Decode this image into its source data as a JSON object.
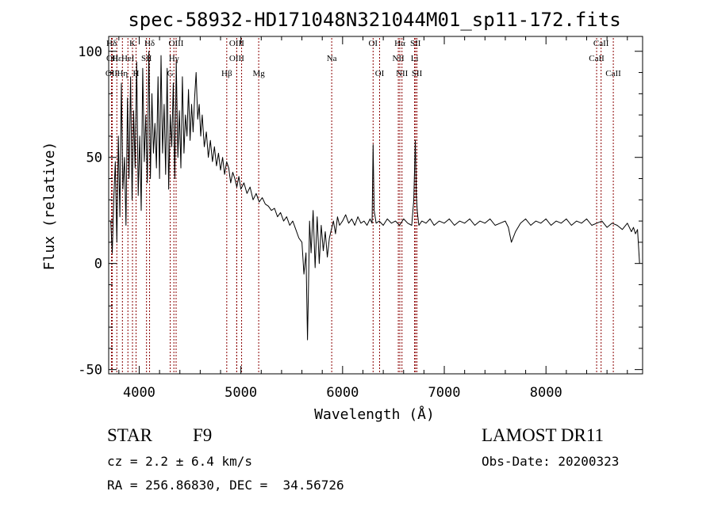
{
  "chart_data": {
    "type": "line",
    "title": "spec-58932-HD171048N321044M01_sp11-172.fits",
    "xlabel": "Wavelength (Å)",
    "ylabel": "Flux (relative)",
    "xlim": [
      3700,
      8950
    ],
    "ylim": [
      -52,
      107
    ],
    "xticks": [
      4000,
      5000,
      6000,
      7000,
      8000
    ],
    "yticks": [
      -50,
      0,
      50,
      100
    ],
    "grid": false,
    "line_color": "#000000",
    "marker_color": "#8b0000",
    "series": [
      {
        "x": [
          3720,
          3735,
          3750,
          3765,
          3780,
          3795,
          3810,
          3825,
          3840,
          3855,
          3870,
          3885,
          3900,
          3915,
          3930,
          3945,
          3960,
          3975,
          3990,
          4005,
          4020,
          4035,
          4050,
          4065,
          4080,
          4095,
          4110,
          4125,
          4140,
          4155,
          4170,
          4185,
          4200,
          4215,
          4230,
          4245,
          4260,
          4275,
          4290,
          4305,
          4320,
          4335,
          4350,
          4365,
          4380,
          4395,
          4410,
          4425,
          4440,
          4455,
          4470,
          4485,
          4500,
          4515,
          4530,
          4545,
          4560,
          4575,
          4590,
          4605,
          4620,
          4640,
          4660,
          4680,
          4700,
          4720,
          4740,
          4760,
          4780,
          4800,
          4820,
          4840,
          4860,
          4880,
          4900,
          4920,
          4940,
          4960,
          4980,
          5000,
          5030,
          5060,
          5090,
          5120,
          5150,
          5180,
          5210,
          5240,
          5270,
          5300,
          5330,
          5360,
          5390,
          5420,
          5450,
          5480,
          5510,
          5540,
          5570,
          5600,
          5620,
          5640,
          5655,
          5665,
          5675,
          5690,
          5710,
          5730,
          5750,
          5770,
          5790,
          5810,
          5830,
          5850,
          5870,
          5890,
          5910,
          5930,
          5950,
          5970,
          6000,
          6030,
          6060,
          6090,
          6120,
          6150,
          6180,
          6210,
          6240,
          6270,
          6290,
          6300,
          6310,
          6330,
          6360,
          6400,
          6440,
          6480,
          6520,
          6560,
          6600,
          6640,
          6680,
          6700,
          6715,
          6725,
          6735,
          6750,
          6780,
          6820,
          6860,
          6900,
          6950,
          7000,
          7050,
          7100,
          7150,
          7200,
          7250,
          7300,
          7350,
          7400,
          7450,
          7500,
          7550,
          7600,
          7630,
          7660,
          7700,
          7750,
          7800,
          7850,
          7900,
          7950,
          8000,
          8050,
          8100,
          8150,
          8200,
          8250,
          8300,
          8350,
          8400,
          8450,
          8500,
          8550,
          8600,
          8650,
          8700,
          8750,
          8800,
          8840,
          8860,
          8880,
          8900,
          8920
        ],
        "y": [
          20,
          5,
          30,
          48,
          10,
          60,
          22,
          85,
          35,
          50,
          18,
          78,
          40,
          88,
          30,
          72,
          45,
          95,
          32,
          60,
          25,
          92,
          48,
          70,
          38,
          100,
          40,
          80,
          52,
          66,
          45,
          88,
          40,
          98,
          52,
          75,
          42,
          92,
          35,
          70,
          55,
          85,
          40,
          95,
          50,
          72,
          45,
          88,
          52,
          70,
          60,
          82,
          58,
          75,
          62,
          78,
          90,
          68,
          75,
          60,
          70,
          55,
          62,
          50,
          58,
          48,
          55,
          46,
          52,
          44,
          50,
          42,
          48,
          45,
          38,
          43,
          40,
          36,
          41,
          35,
          38,
          33,
          36,
          30,
          33,
          29,
          31,
          28,
          27,
          25,
          26,
          22,
          24,
          20,
          22,
          18,
          20,
          16,
          12,
          10,
          -5,
          5,
          -36,
          -10,
          20,
          5,
          25,
          -2,
          22,
          0,
          18,
          6,
          15,
          3,
          12,
          16,
          20,
          14,
          22,
          18,
          20,
          23,
          19,
          21,
          18,
          22,
          19,
          20,
          18,
          21,
          19,
          56,
          25,
          19,
          20,
          18,
          21,
          19,
          20,
          18,
          21,
          19,
          18,
          30,
          58,
          32,
          24,
          18,
          20,
          19,
          21,
          18,
          20,
          19,
          21,
          18,
          20,
          19,
          21,
          18,
          20,
          19,
          21,
          18,
          19,
          20,
          17,
          10,
          15,
          19,
          21,
          18,
          20,
          19,
          21,
          18,
          20,
          19,
          21,
          18,
          20,
          19,
          21,
          18,
          19,
          20,
          17,
          19,
          18,
          16,
          19,
          15,
          17,
          14,
          16,
          0
        ]
      }
    ],
    "lines": [
      {
        "label": "Hδ",
        "x": 3728,
        "row": 0
      },
      {
        "label": "OII",
        "x": 3736,
        "row": 1
      },
      {
        "label": "OII",
        "x": 3727,
        "row": 2
      },
      {
        "label": "Hε",
        "x": 3780,
        "row": 1
      },
      {
        "label": "Hη",
        "x": 3835,
        "row": 2
      },
      {
        "label": "K",
        "x": 3934,
        "row": 0
      },
      {
        "label": "HeI",
        "x": 3889,
        "row": 1
      },
      {
        "label": "H",
        "x": 3969,
        "row": 2
      },
      {
        "label": "Hδ",
        "x": 4102,
        "row": 0
      },
      {
        "label": "SII",
        "x": 4072,
        "row": 1
      },
      {
        "label": "OIII",
        "x": 4363,
        "row": 0
      },
      {
        "label": "Hγ",
        "x": 4341,
        "row": 1
      },
      {
        "label": "G",
        "x": 4305,
        "row": 2
      },
      {
        "label": "OIII",
        "x": 4959,
        "row": 0
      },
      {
        "label": "OIII",
        "x": 4959,
        "row": 1
      },
      {
        "label": "Hβ",
        "x": 4861,
        "row": 2
      },
      {
        "label": "Mg",
        "x": 5175,
        "row": 2
      },
      {
        "label": "OIII",
        "x": 5007,
        "row": -1
      },
      {
        "label": "Na",
        "x": 5893,
        "row": 1
      },
      {
        "label": "OI",
        "x": 6300,
        "row": 0
      },
      {
        "label": "OI",
        "x": 6364,
        "row": 2
      },
      {
        "label": "Hα",
        "x": 6563,
        "row": 0
      },
      {
        "label": "NII",
        "x": 6548,
        "row": 1
      },
      {
        "label": "NII",
        "x": 6584,
        "row": 2
      },
      {
        "label": "SII",
        "x": 6717,
        "row": 0
      },
      {
        "label": "Li",
        "x": 6708,
        "row": 1
      },
      {
        "label": "SII",
        "x": 6731,
        "row": 2
      },
      {
        "label": "CaII",
        "x": 8542,
        "row": 0
      },
      {
        "label": "CaII",
        "x": 8498,
        "row": 1
      },
      {
        "label": "CaII",
        "x": 8662,
        "row": 2
      }
    ]
  },
  "info": {
    "object_class": "STAR",
    "subclass": "F9",
    "survey": "LAMOST DR11",
    "cz": "cz = 2.2 ± 6.4 km/s",
    "obs_date": "Obs-Date: 20200323",
    "coords": "RA = 256.86830, DEC =  34.56726"
  }
}
